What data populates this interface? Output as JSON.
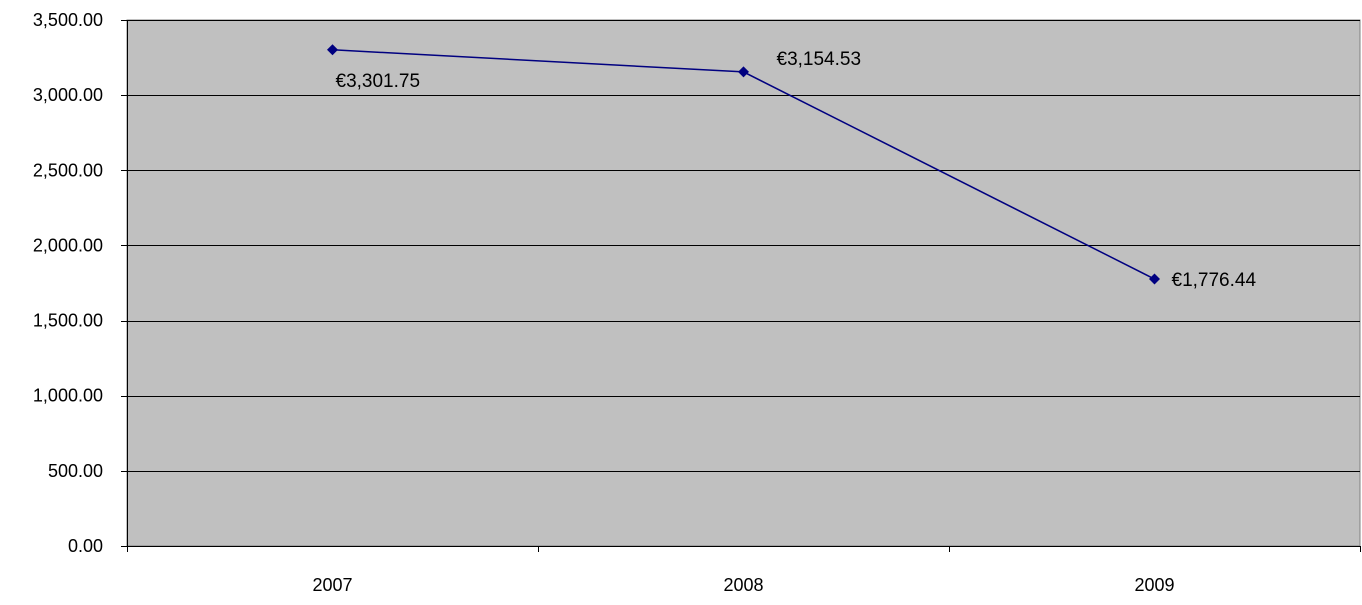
{
  "chart_data": {
    "type": "line",
    "categories": [
      "2007",
      "2008",
      "2009"
    ],
    "series": [
      {
        "values": [
          3301.75,
          3154.53,
          1776.44
        ],
        "data_labels": [
          "€3,301.75",
          "€3,154.53",
          "€1,776.44"
        ]
      }
    ],
    "y_ticks": [
      "0.00",
      "500.00",
      "1,000.00",
      "1,500.00",
      "2,000.00",
      "2,500.00",
      "3,000.00",
      "3,500.00"
    ],
    "y_tick_values": [
      0,
      500,
      1000,
      1500,
      2000,
      2500,
      3000,
      3500
    ],
    "ylim": [
      0,
      3500
    ],
    "grid": true,
    "legend": "none",
    "colors": {
      "plot_background": "#c0c0c0",
      "line": "#000080",
      "marker": "#000080",
      "gridline": "#000000"
    },
    "marker": "diamond"
  }
}
